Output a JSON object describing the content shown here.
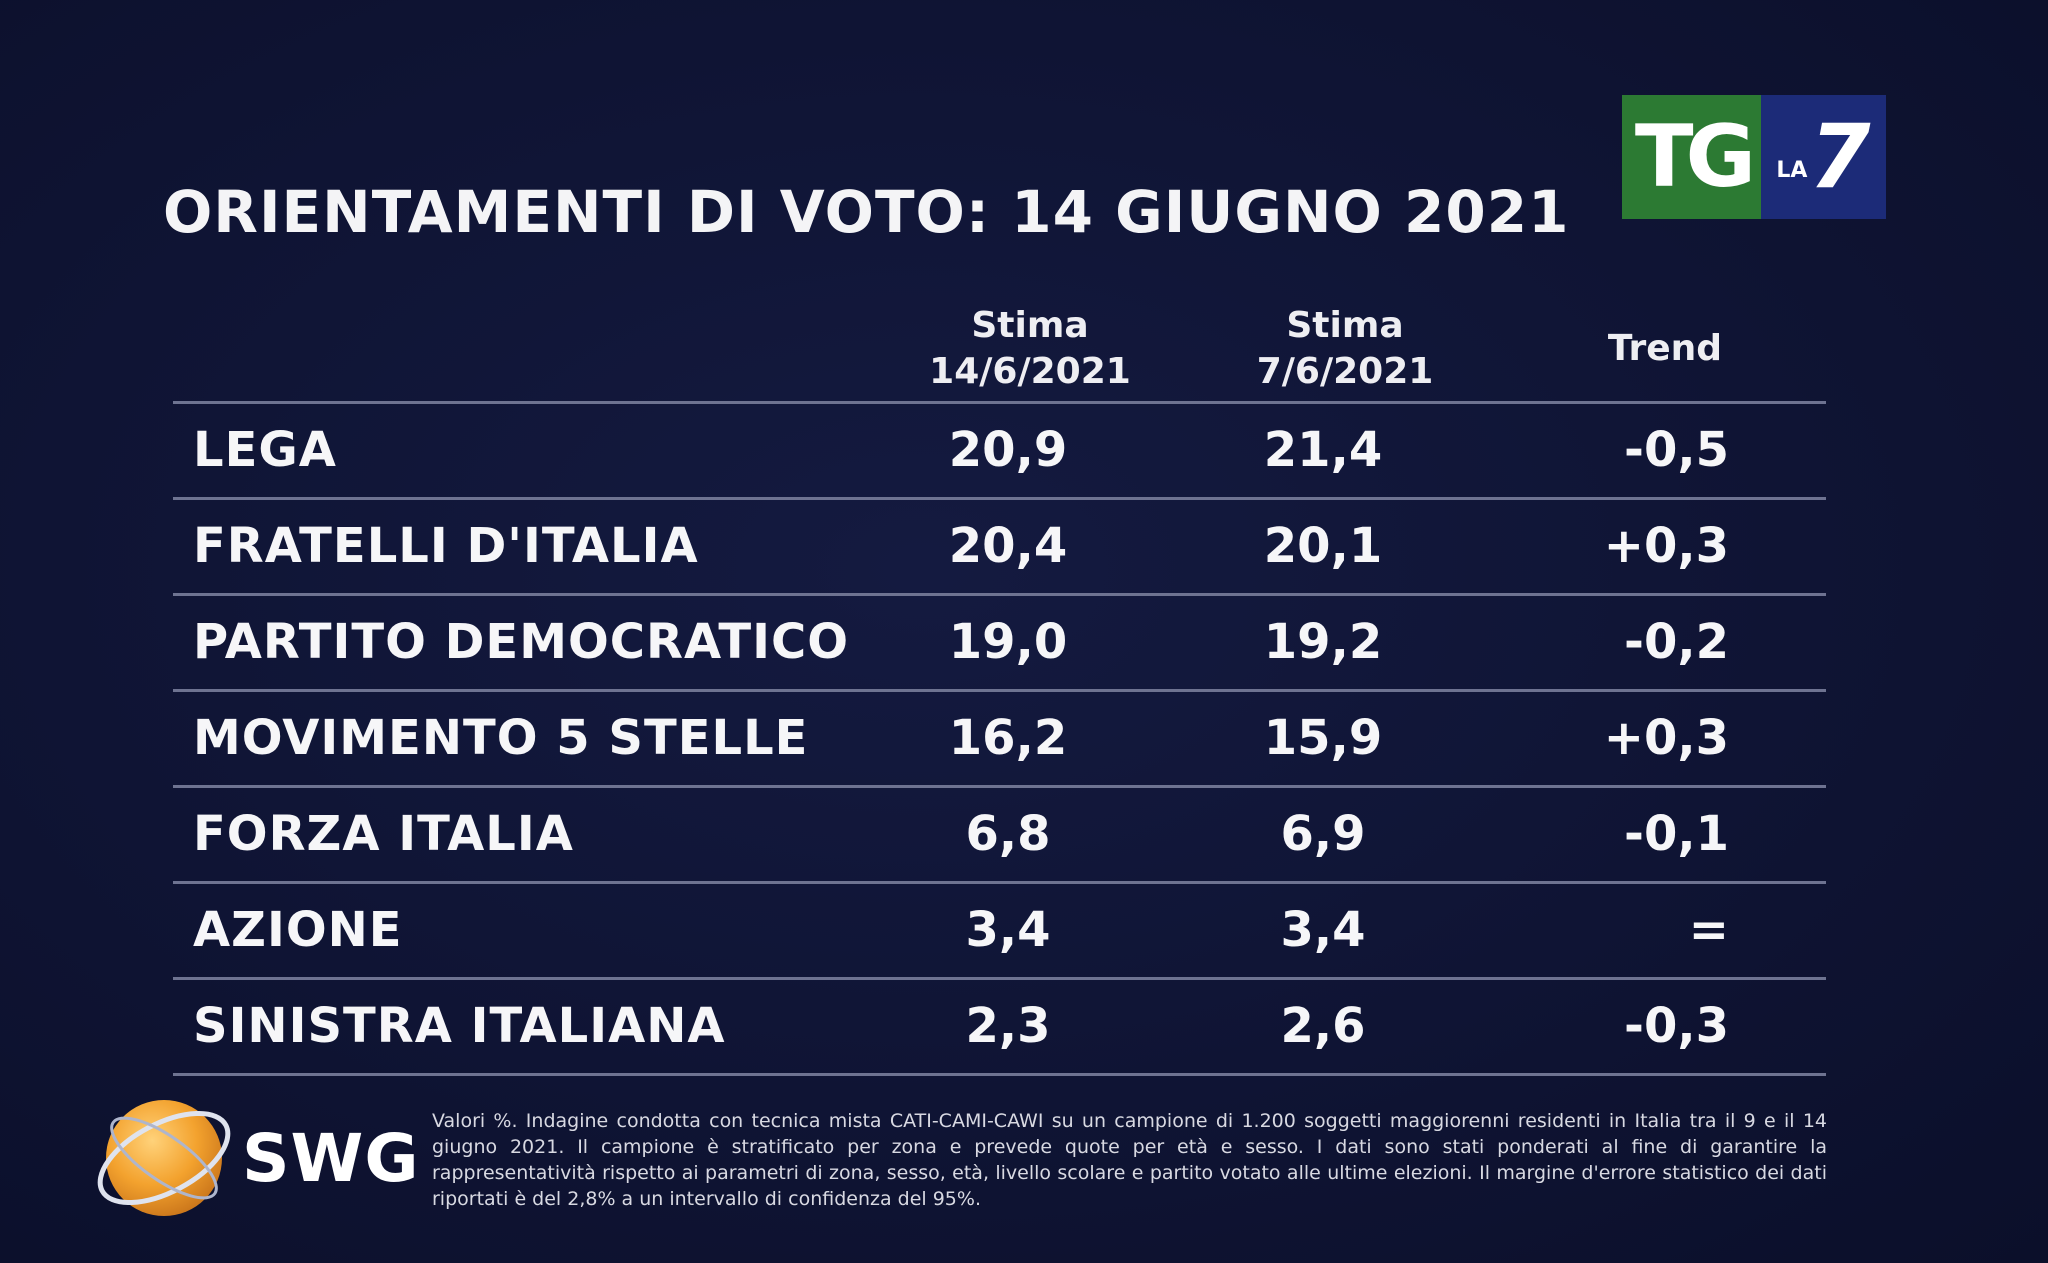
{
  "title": "ORIENTAMENTI DI VOTO: 14 GIUGNO 2021",
  "logo": {
    "tg": "TG",
    "la": "LA",
    "seven": "7"
  },
  "chart_data": {
    "type": "table",
    "title": "ORIENTAMENTI DI VOTO: 14 GIUGNO 2021",
    "columns": [
      {
        "line1": "Stima",
        "line2": "14/6/2021"
      },
      {
        "line1": "Stima",
        "line2": "7/6/2021"
      },
      {
        "line1": "Trend",
        "line2": ""
      }
    ],
    "rows": [
      {
        "party": "LEGA",
        "v1": "20,9",
        "v2": "21,4",
        "trend": "-0,5"
      },
      {
        "party": "FRATELLI D'ITALIA",
        "v1": "20,4",
        "v2": "20,1",
        "trend": "+0,3"
      },
      {
        "party": "PARTITO DEMOCRATICO",
        "v1": "19,0",
        "v2": "19,2",
        "trend": "-0,2"
      },
      {
        "party": "MOVIMENTO 5 STELLE",
        "v1": "16,2",
        "v2": "15,9",
        "trend": "+0,3"
      },
      {
        "party": "FORZA ITALIA",
        "v1": "6,8",
        "v2": "6,9",
        "trend": "-0,1"
      },
      {
        "party": "AZIONE",
        "v1": "3,4",
        "v2": "3,4",
        "trend": "="
      },
      {
        "party": "SINISTRA ITALIANA",
        "v1": "2,3",
        "v2": "2,6",
        "trend": "-0,3"
      }
    ]
  },
  "source": {
    "name": "SWG",
    "footnote": "Valori %. Indagine condotta con tecnica mista CATI-CAMI-CAWI su un campione di 1.200 soggetti maggiorenni residenti in Italia tra il 9 e il 14 giugno 2021. Il campione è stratificato per zona e prevede quote per età e sesso. I dati sono stati ponderati al fine di garantire la rappresentatività rispetto ai parametri di zona, sesso, età, livello scolare e partito votato alle ultime elezioni. Il margine d'errore statistico dei dati riportati è del 2,8% a un intervallo di confidenza del 95%."
  },
  "colors": {
    "background": "#0f1434",
    "tg_green": "#2c7a33",
    "la7_blue": "#1c2b78",
    "rule": "#6e7391",
    "swg_orange": "#f0a030"
  }
}
